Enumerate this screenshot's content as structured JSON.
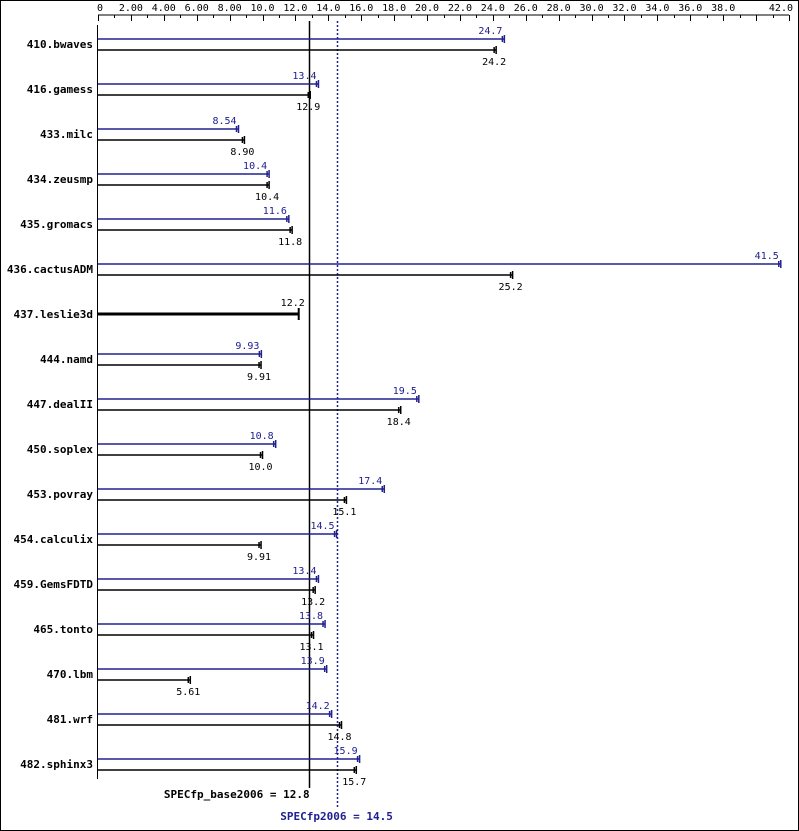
{
  "chart_data": {
    "type": "bar",
    "orientation": "horizontal",
    "xlim": [
      0,
      42
    ],
    "ticks": [
      "0",
      "2.00",
      "4.00",
      "6.00",
      "8.00",
      "10.0",
      "12.0",
      "14.0",
      "16.0",
      "18.0",
      "20.0",
      "22.0",
      "24.0",
      "26.0",
      "28.0",
      "30.0",
      "32.0",
      "34.0",
      "36.0",
      "38.0",
      "42.0"
    ],
    "tick_values": [
      0,
      2,
      4,
      6,
      8,
      10,
      12,
      14,
      16,
      18,
      20,
      22,
      24,
      26,
      28,
      30,
      32,
      34,
      36,
      38,
      42
    ],
    "categories": [
      "410.bwaves",
      "416.gamess",
      "433.milc",
      "434.zeusmp",
      "435.gromacs",
      "436.cactusADM",
      "437.leslie3d",
      "444.namd",
      "447.dealII",
      "450.soplex",
      "453.povray",
      "454.calculix",
      "459.GemsFDTD",
      "465.tonto",
      "470.lbm",
      "481.wrf",
      "482.sphinx3"
    ],
    "series": [
      {
        "role": "peak",
        "color": "#202090",
        "values": [
          24.7,
          13.4,
          8.54,
          10.4,
          11.6,
          41.5,
          null,
          9.93,
          19.5,
          10.8,
          17.4,
          14.5,
          13.4,
          13.8,
          13.9,
          14.2,
          15.9
        ],
        "labels": [
          "24.7",
          "13.4",
          "8.54",
          "10.4",
          "11.6",
          "41.5",
          "",
          "9.93",
          "19.5",
          "10.8",
          "17.4",
          "14.5",
          "13.4",
          "13.8",
          "13.9",
          "14.2",
          "15.9"
        ]
      },
      {
        "role": "base",
        "color": "#000000",
        "values": [
          24.2,
          12.9,
          8.9,
          10.4,
          11.8,
          25.2,
          12.2,
          9.91,
          18.4,
          10.0,
          15.1,
          9.91,
          13.2,
          13.1,
          5.61,
          14.8,
          15.7
        ],
        "labels": [
          "24.2",
          "12.9",
          "8.90",
          "10.4",
          "11.8",
          "25.2",
          "12.2",
          "9.91",
          "18.4",
          "10.0",
          "15.1",
          "9.91",
          "13.2",
          "13.1",
          "5.61",
          "14.8",
          "15.7"
        ]
      }
    ],
    "reference_lines": [
      {
        "role": "base",
        "value": 12.8,
        "label": "SPECfp_base2006 = 12.8",
        "style": "solid",
        "color": "#000000"
      },
      {
        "role": "peak",
        "value": 14.5,
        "label": "SPECfp2006 = 14.5",
        "style": "dotted",
        "color": "#202090"
      }
    ],
    "grid": false
  }
}
